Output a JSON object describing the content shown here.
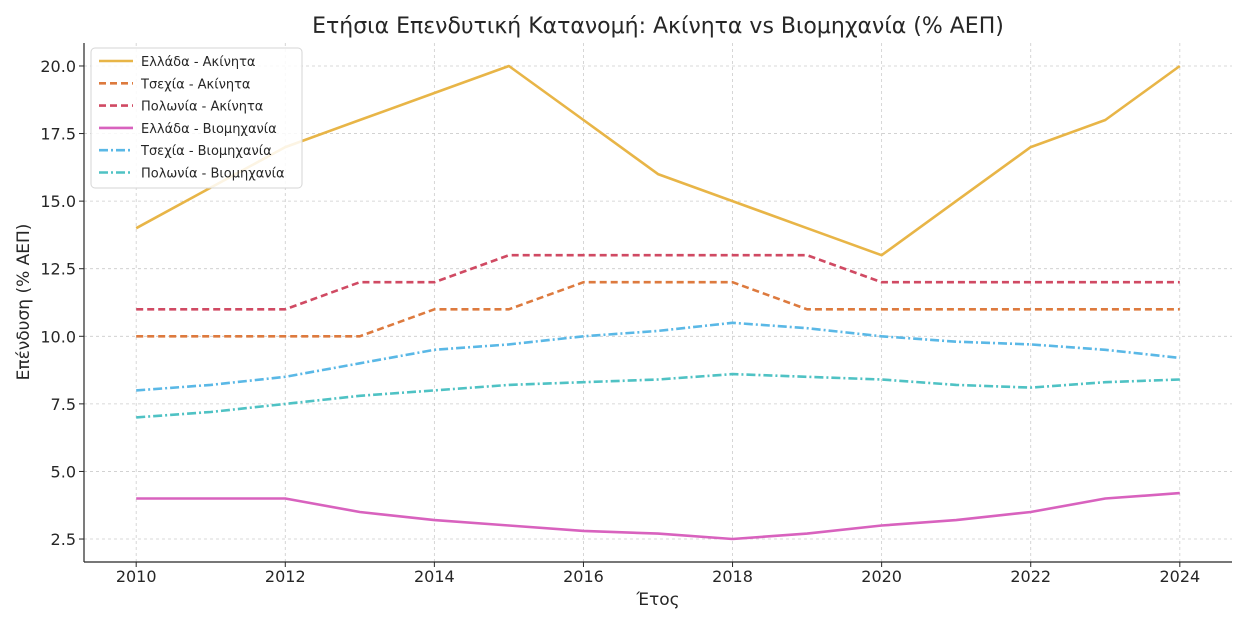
{
  "chart_data": {
    "type": "line",
    "title": "Ετήσια Επενδυτική Κατανομή: Ακίνητα vs Βιομηχανία (% ΑΕΠ)",
    "xlabel": "Έτος",
    "ylabel": "Επένδυση (% ΑΕΠ)",
    "x": [
      2010,
      2011,
      2012,
      2013,
      2014,
      2015,
      2016,
      2017,
      2018,
      2019,
      2020,
      2021,
      2022,
      2023,
      2024
    ],
    "xlim": [
      2009.3,
      2024.7
    ],
    "ylim": [
      1.65,
      20.85
    ],
    "xticks": [
      "2010",
      "2012",
      "2014",
      "2016",
      "2018",
      "2020",
      "2022",
      "2024"
    ],
    "yticks": [
      "2.5",
      "5.0",
      "7.5",
      "10.0",
      "12.5",
      "15.0",
      "17.5",
      "20.0"
    ],
    "grid": true,
    "legend_position": "top-left",
    "series": [
      {
        "name": "Ελλάδα - Ακίνητα",
        "color": "#e8b547",
        "style": "solid",
        "values": [
          14,
          15.5,
          17,
          18,
          19,
          20,
          18,
          16,
          15,
          14,
          13,
          15,
          17,
          18,
          20
        ]
      },
      {
        "name": "Τσεχία - Ακίνητα",
        "color": "#dd7a3e",
        "style": "dashed",
        "values": [
          10,
          10,
          10,
          10,
          11,
          11,
          12,
          12,
          12,
          11,
          11,
          11,
          11,
          11,
          11
        ]
      },
      {
        "name": "Πολωνία - Ακίνητα",
        "color": "#d04a63",
        "style": "dashed",
        "values": [
          11,
          11,
          11,
          12,
          12,
          13,
          13,
          13,
          13,
          13,
          12,
          12,
          12,
          12,
          12
        ]
      },
      {
        "name": "Ελλάδα - Βιομηχανία",
        "color": "#d862be",
        "style": "solid",
        "values": [
          4,
          4,
          4,
          3.5,
          3.2,
          3,
          2.8,
          2.7,
          2.5,
          2.7,
          3,
          3.2,
          3.5,
          4,
          4.2
        ]
      },
      {
        "name": "Τσεχία - Βιομηχανία",
        "color": "#5ab8e6",
        "style": "dashdot",
        "values": [
          8,
          8.2,
          8.5,
          9,
          9.5,
          9.7,
          10,
          10.2,
          10.5,
          10.3,
          10,
          9.8,
          9.7,
          9.5,
          9.2
        ]
      },
      {
        "name": "Πολωνία - Βιομηχανία",
        "color": "#4fc2c4",
        "style": "dashdot",
        "values": [
          7,
          7.2,
          7.5,
          7.8,
          8,
          8.2,
          8.3,
          8.4,
          8.6,
          8.5,
          8.4,
          8.2,
          8.1,
          8.3,
          8.4
        ]
      }
    ]
  }
}
